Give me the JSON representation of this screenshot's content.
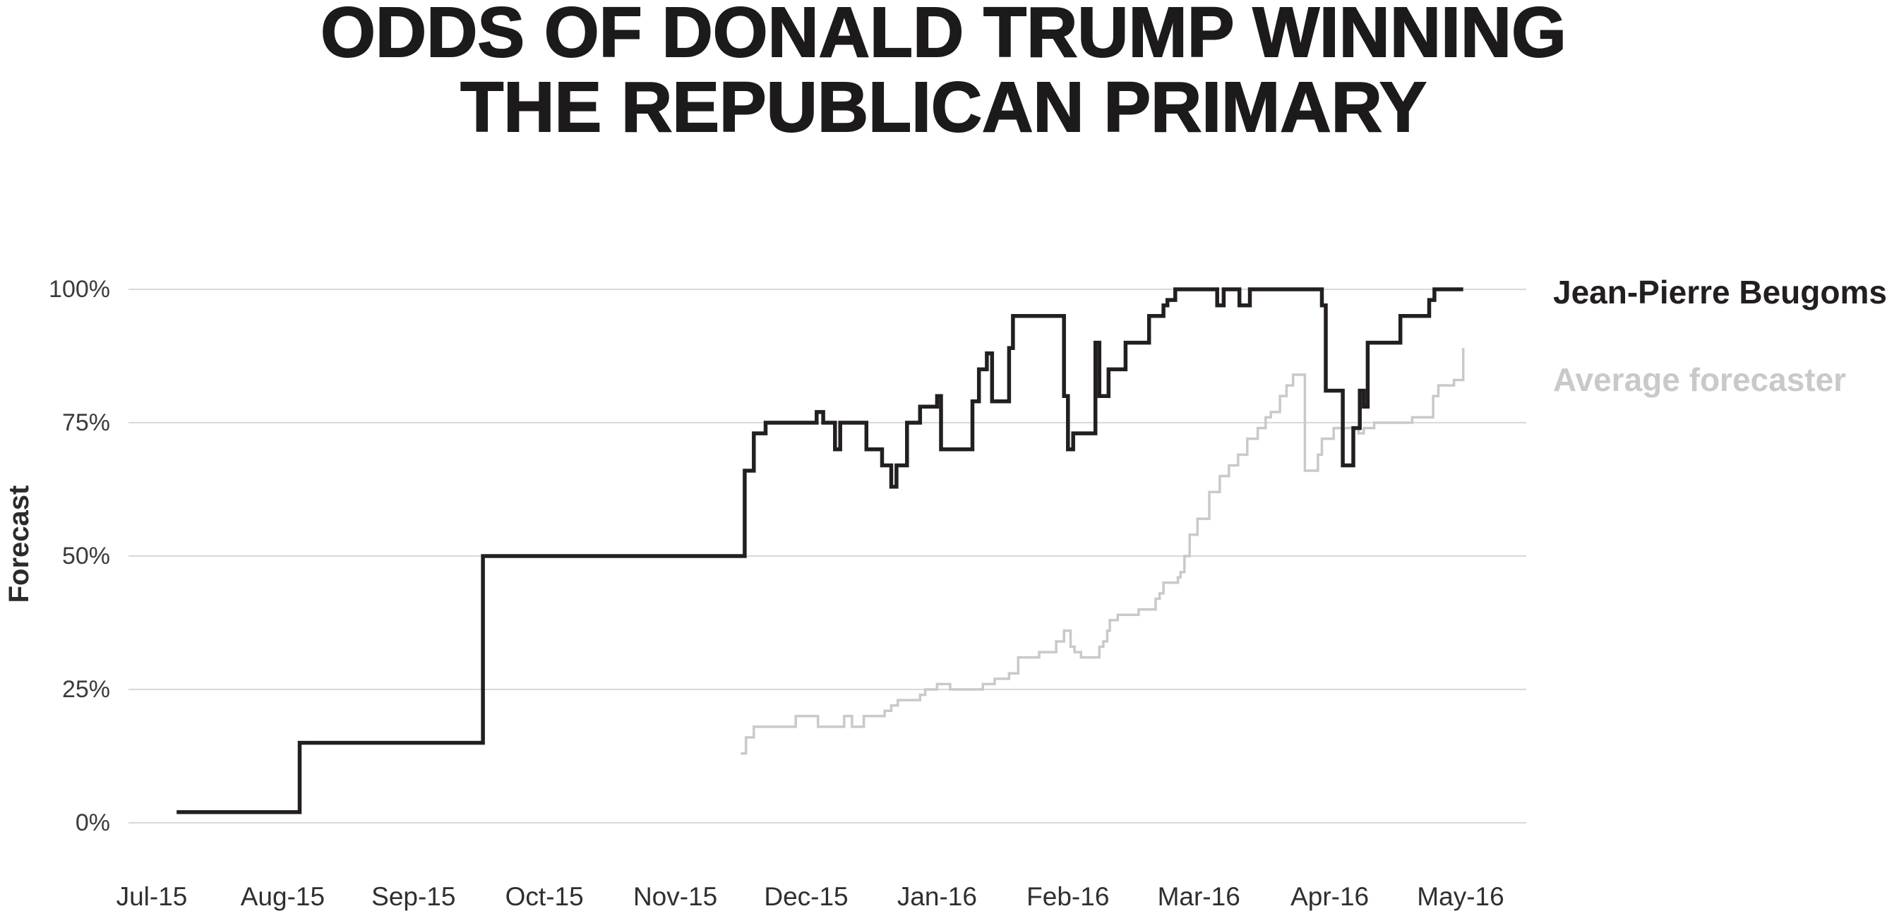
{
  "title": {
    "line1": "ODDS OF DONALD TRUMP WINNING",
    "line2": "THE REPUBLICAN PRIMARY"
  },
  "y_axis": {
    "title": "Forecast",
    "tick_labels": [
      "0%",
      "25%",
      "50%",
      "75%",
      "100%"
    ],
    "tick_values": [
      0,
      25,
      50,
      75,
      100
    ]
  },
  "x_axis": {
    "tick_labels": [
      "Jul-15",
      "Aug-15",
      "Sep-15",
      "Oct-15",
      "Nov-15",
      "Dec-15",
      "Jan-16",
      "Feb-16",
      "Mar-16",
      "Apr-16",
      "May-16"
    ]
  },
  "legend": {
    "position": "right",
    "entries": [
      {
        "label": "Jean-Pierre Beugoms",
        "color": "#231f20"
      },
      {
        "label": "Average forecaster",
        "color": "#c9c9c9"
      }
    ]
  },
  "colors": {
    "grid": "#d8d8d8",
    "axis_text": "#3b3b3b",
    "title_text": "#1c1a1b"
  },
  "chart_data": {
    "type": "line",
    "step": true,
    "title": "ODDS OF DONALD TRUMP WINNING THE REPUBLICAN PRIMARY",
    "xlabel": "",
    "ylabel": "Forecast",
    "x_unit": "fractional months: 0 = Jul-15 tick, 1 = Aug-15, ... 10 = May-16",
    "xlim": [
      -0.2,
      10.5
    ],
    "ylim": [
      0,
      100
    ],
    "grid": "horizontal-only",
    "legend_position": "right",
    "series": [
      {
        "name": "Jean-Pierre Beugoms",
        "color": "#231f20",
        "stroke_width": 5.5,
        "points_format": "[months_since_Jul15, forecast_percent] step-after breakpoints",
        "points": [
          [
            0.19,
            2
          ],
          [
            1.13,
            15
          ],
          [
            2.53,
            50
          ],
          [
            4.53,
            66
          ],
          [
            4.6,
            73
          ],
          [
            4.69,
            75
          ],
          [
            5.08,
            77
          ],
          [
            5.13,
            75
          ],
          [
            5.22,
            70
          ],
          [
            5.26,
            75
          ],
          [
            5.46,
            70
          ],
          [
            5.58,
            67
          ],
          [
            5.65,
            63
          ],
          [
            5.69,
            67
          ],
          [
            5.77,
            75
          ],
          [
            5.87,
            78
          ],
          [
            6.0,
            80
          ],
          [
            6.03,
            70
          ],
          [
            6.27,
            79
          ],
          [
            6.32,
            85
          ],
          [
            6.38,
            88
          ],
          [
            6.42,
            79
          ],
          [
            6.55,
            89
          ],
          [
            6.58,
            95
          ],
          [
            6.97,
            80
          ],
          [
            7.0,
            70
          ],
          [
            7.04,
            73
          ],
          [
            7.21,
            90
          ],
          [
            7.24,
            80
          ],
          [
            7.31,
            85
          ],
          [
            7.44,
            90
          ],
          [
            7.62,
            95
          ],
          [
            7.73,
            97
          ],
          [
            7.76,
            98
          ],
          [
            7.82,
            100
          ],
          [
            8.14,
            97
          ],
          [
            8.19,
            100
          ],
          [
            8.31,
            97
          ],
          [
            8.39,
            100
          ],
          [
            8.94,
            97
          ],
          [
            8.97,
            81
          ],
          [
            9.1,
            67
          ],
          [
            9.18,
            74
          ],
          [
            9.23,
            81
          ],
          [
            9.26,
            78
          ],
          [
            9.29,
            90
          ],
          [
            9.54,
            95
          ],
          [
            9.76,
            98
          ],
          [
            9.8,
            100
          ],
          [
            10.02,
            100
          ]
        ]
      },
      {
        "name": "Average forecaster",
        "color": "#c9c9c9",
        "stroke_width": 3.5,
        "points_format": "[months_since_Jul15, forecast_percent] step-after breakpoints",
        "points": [
          [
            4.5,
            13
          ],
          [
            4.54,
            16
          ],
          [
            4.6,
            18
          ],
          [
            4.92,
            20
          ],
          [
            5.09,
            18
          ],
          [
            5.29,
            20
          ],
          [
            5.35,
            18
          ],
          [
            5.44,
            20
          ],
          [
            5.6,
            21
          ],
          [
            5.65,
            22
          ],
          [
            5.7,
            23
          ],
          [
            5.87,
            24
          ],
          [
            5.91,
            25
          ],
          [
            6.0,
            26
          ],
          [
            6.1,
            25
          ],
          [
            6.35,
            26
          ],
          [
            6.44,
            27
          ],
          [
            6.55,
            28
          ],
          [
            6.62,
            31
          ],
          [
            6.78,
            32
          ],
          [
            6.91,
            34
          ],
          [
            6.97,
            36
          ],
          [
            7.02,
            33
          ],
          [
            7.05,
            32
          ],
          [
            7.1,
            31
          ],
          [
            7.24,
            33
          ],
          [
            7.27,
            34
          ],
          [
            7.3,
            36
          ],
          [
            7.32,
            38
          ],
          [
            7.38,
            39
          ],
          [
            7.54,
            40
          ],
          [
            7.67,
            42
          ],
          [
            7.7,
            43
          ],
          [
            7.73,
            45
          ],
          [
            7.84,
            46
          ],
          [
            7.86,
            47
          ],
          [
            7.89,
            50
          ],
          [
            7.93,
            54
          ],
          [
            7.99,
            57
          ],
          [
            8.08,
            62
          ],
          [
            8.16,
            65
          ],
          [
            8.23,
            67
          ],
          [
            8.3,
            69
          ],
          [
            8.37,
            72
          ],
          [
            8.45,
            74
          ],
          [
            8.51,
            76
          ],
          [
            8.55,
            77
          ],
          [
            8.62,
            80
          ],
          [
            8.67,
            82
          ],
          [
            8.72,
            84
          ],
          [
            8.81,
            66
          ],
          [
            8.91,
            69
          ],
          [
            8.94,
            72
          ],
          [
            9.03,
            74
          ],
          [
            9.22,
            73
          ],
          [
            9.26,
            74
          ],
          [
            9.34,
            75
          ],
          [
            9.63,
            76
          ],
          [
            9.79,
            80
          ],
          [
            9.83,
            82
          ],
          [
            9.95,
            83
          ],
          [
            10.02,
            89
          ]
        ]
      }
    ]
  }
}
